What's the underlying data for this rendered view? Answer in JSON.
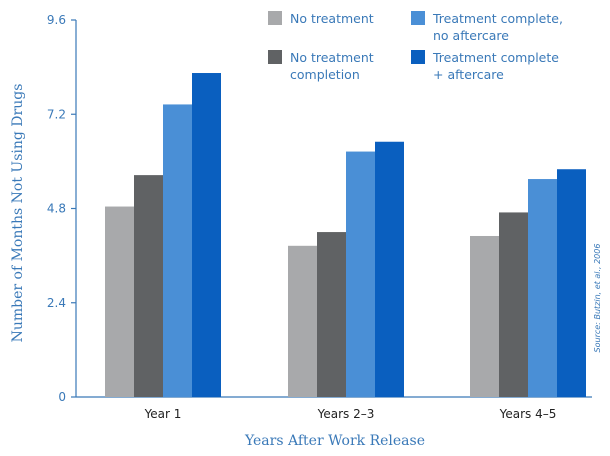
{
  "chart_data": {
    "type": "bar",
    "title": "",
    "xlabel": "Years After Work Release",
    "ylabel": "Number of Months Not Using Drugs",
    "ylim": [
      0,
      9.6
    ],
    "yticks": [
      "0",
      "2.4",
      "4.8",
      "7.2",
      "9.6"
    ],
    "grid": false,
    "legend_position": "top-right",
    "categories": [
      "Year 1",
      "Years 2–3",
      "Years 4–5"
    ],
    "series": [
      {
        "name": "No treatment",
        "color": "#a8a9ab",
        "values": [
          4.85,
          3.85,
          4.1
        ]
      },
      {
        "name": "No treatment completion",
        "color": "#606264",
        "values": [
          5.65,
          4.2,
          4.7
        ]
      },
      {
        "name": "Treatment complete, no aftercare",
        "color": "#4a8fd6",
        "values": [
          7.45,
          6.25,
          5.55
        ]
      },
      {
        "name": "Treatment complete + aftercare",
        "color": "#0a5fbf",
        "values": [
          8.25,
          6.5,
          5.8
        ]
      }
    ],
    "legend_lines": [
      [
        "No treatment"
      ],
      [
        "No treatment",
        "completion"
      ],
      [
        "Treatment complete,",
        "no aftercare"
      ],
      [
        "Treatment complete",
        "+ aftercare"
      ]
    ],
    "source": "Source: Butzin, et al., 2006"
  }
}
